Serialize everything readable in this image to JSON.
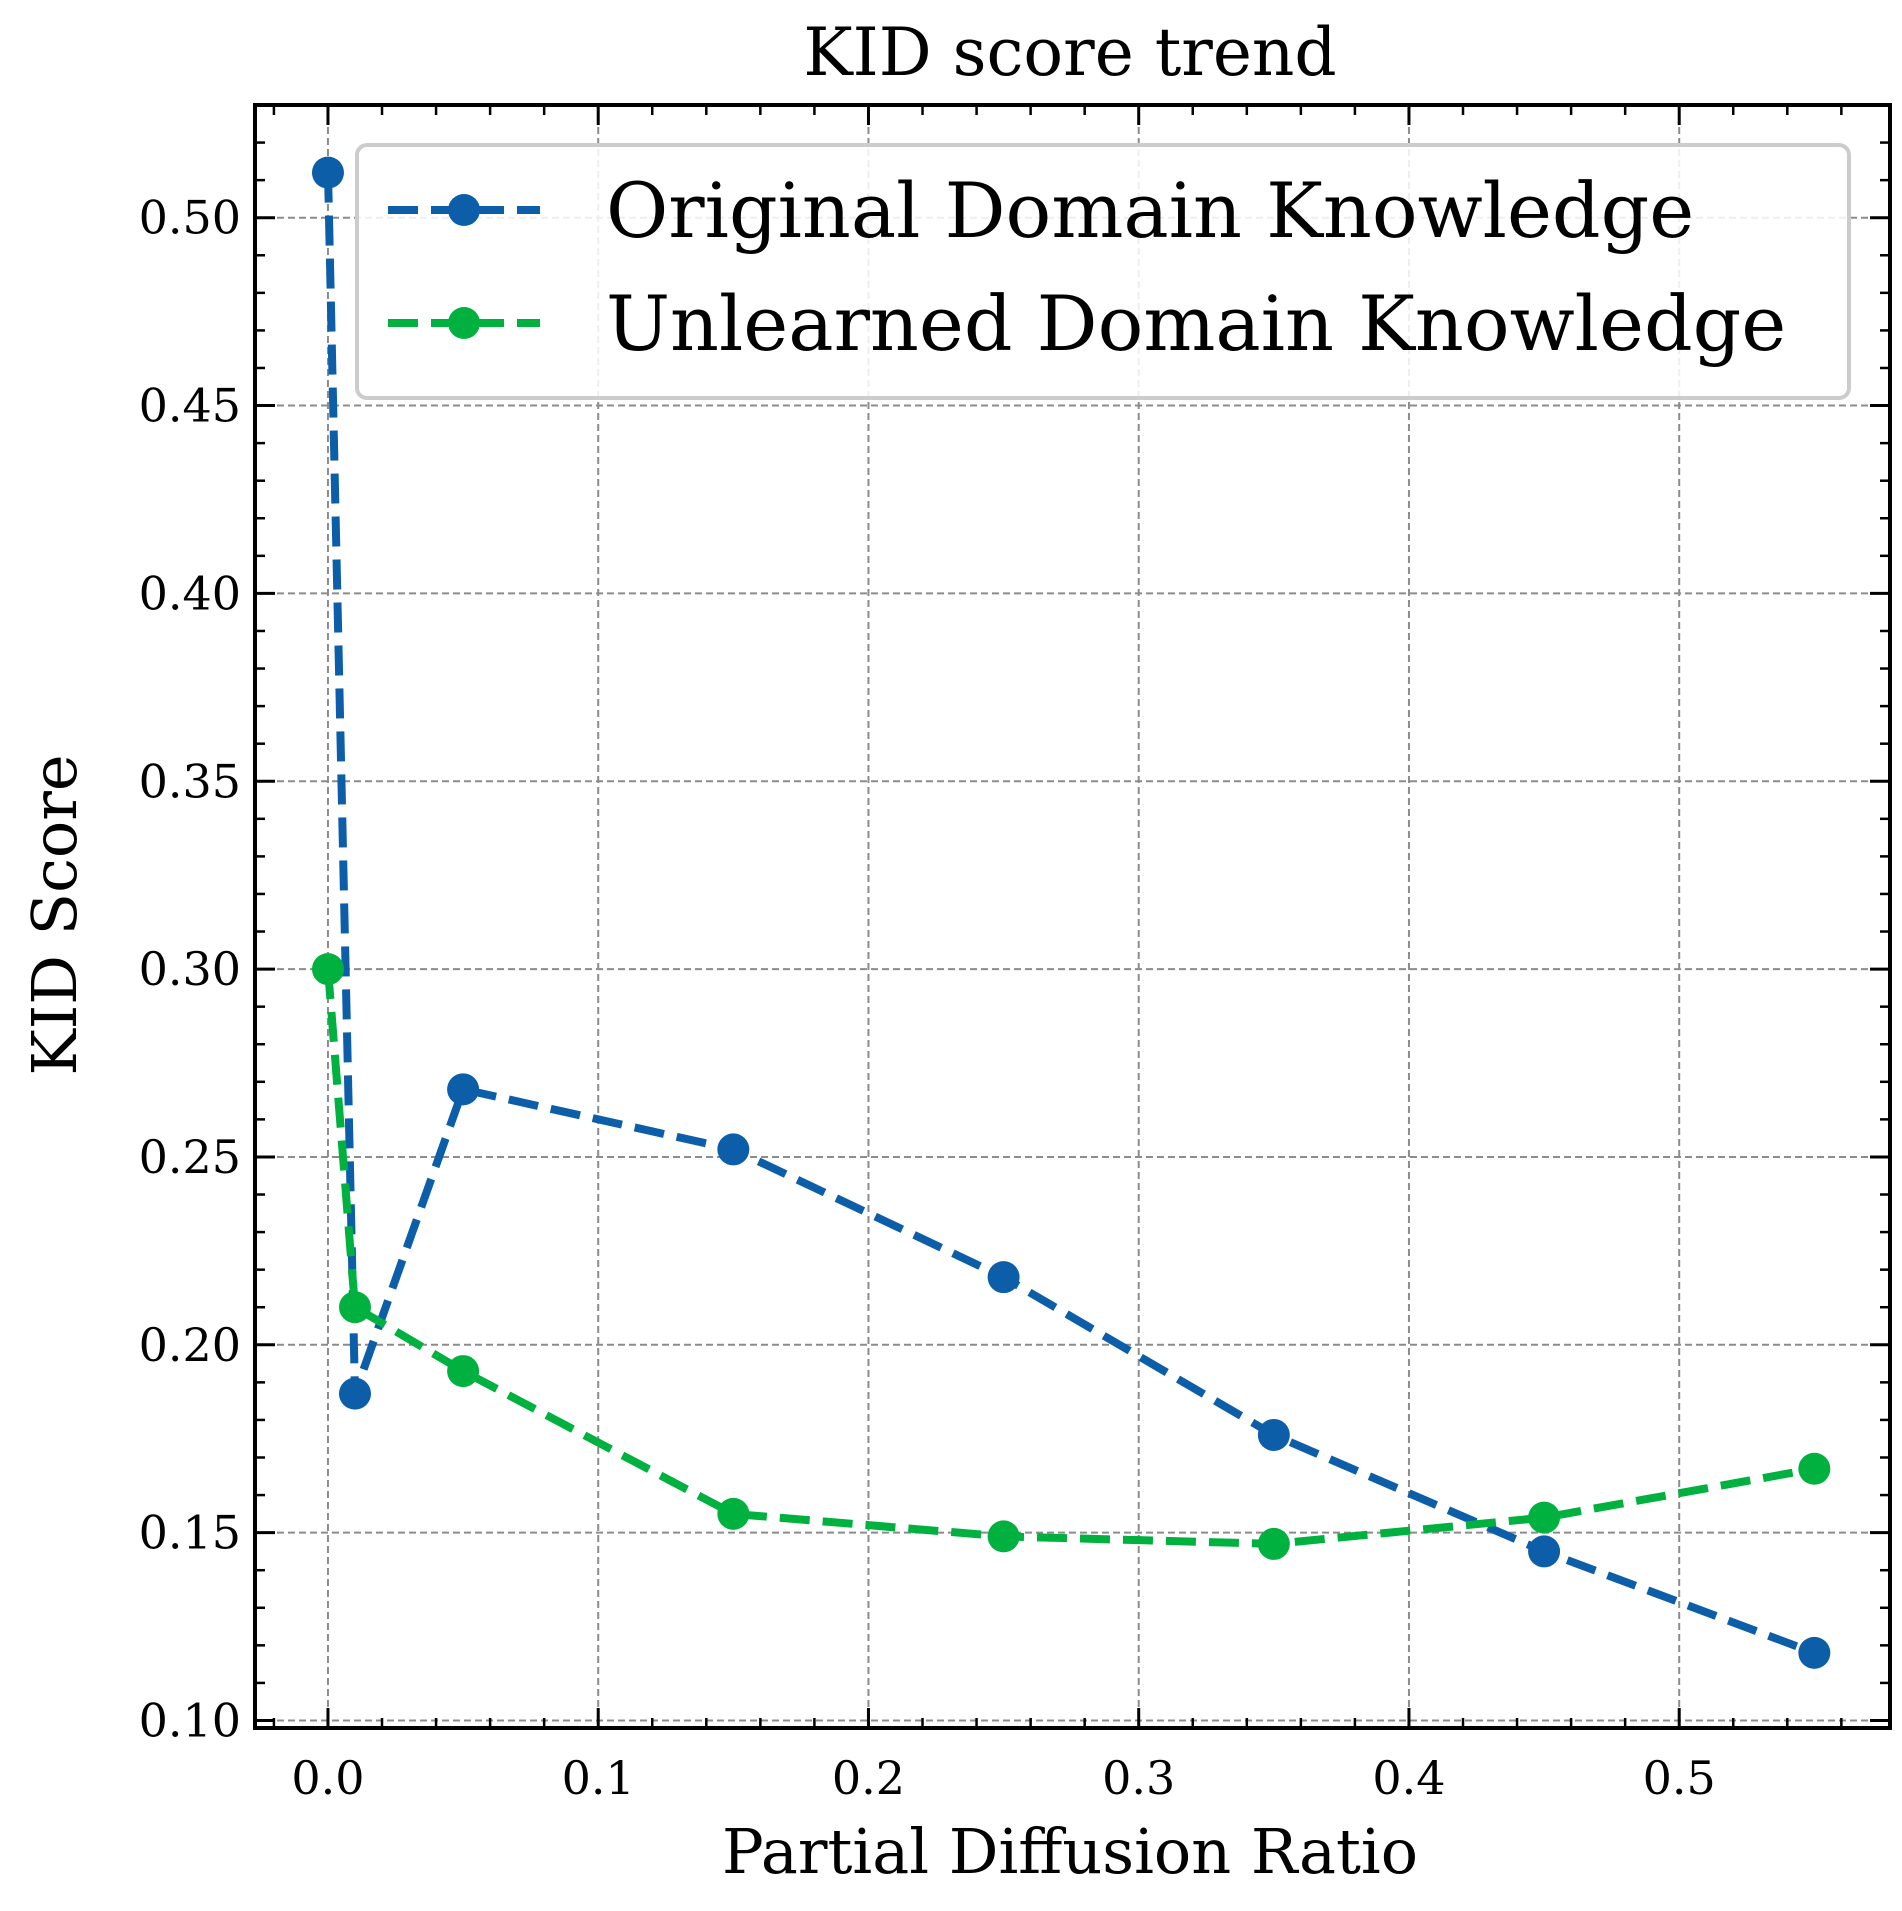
{
  "chart_data": {
    "type": "line",
    "title": "KID score trend",
    "xlabel": "Partial Diffusion Ratio",
    "ylabel": "KID Score",
    "xlim": [
      -0.027,
      0.578
    ],
    "ylim": [
      0.098,
      0.53
    ],
    "xticks": [
      0.0,
      0.1,
      0.2,
      0.3,
      0.4,
      0.5
    ],
    "xtick_labels": [
      "0.0",
      "0.1",
      "0.2",
      "0.3",
      "0.4",
      "0.5"
    ],
    "yticks": [
      0.1,
      0.15,
      0.2,
      0.25,
      0.3,
      0.35,
      0.4,
      0.45,
      0.5
    ],
    "ytick_labels": [
      "0.10",
      "0.15",
      "0.20",
      "0.25",
      "0.30",
      "0.35",
      "0.40",
      "0.45",
      "0.50"
    ],
    "grid": true,
    "legend_position": "top-right",
    "x": [
      0.0,
      0.01,
      0.05,
      0.15,
      0.25,
      0.35,
      0.45,
      0.55
    ],
    "series": [
      {
        "name": "Original Domain Knowledge",
        "color": "#0d5ea8",
        "values": [
          0.512,
          0.187,
          0.268,
          0.252,
          0.218,
          0.176,
          0.145,
          0.118
        ]
      },
      {
        "name": "Unlearned Domain Knowledge",
        "color": "#00b140",
        "values": [
          0.3,
          0.21,
          0.193,
          0.155,
          0.149,
          0.147,
          0.154,
          0.167
        ]
      }
    ]
  }
}
